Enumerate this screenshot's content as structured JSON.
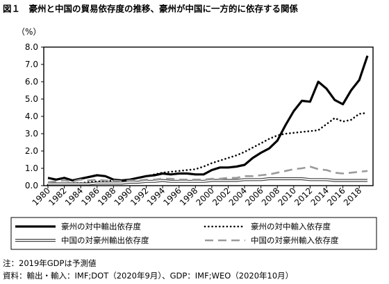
{
  "figure": {
    "title": "図１　豪州と中国の貿易依存度の推移、豪州が中国に一方的に依存する関係",
    "note": "注：2019年GDPは予測値",
    "source": "資料：輸出・輸入：IMF;DOT（2020年9月）、GDP：IMF;WEO（2020年10月）"
  },
  "chart_data": {
    "type": "line",
    "ylabel": "（%）",
    "ylim": [
      0,
      8
    ],
    "yticks": [
      0.0,
      1.0,
      2.0,
      3.0,
      4.0,
      5.0,
      6.0,
      7.0,
      8.0
    ],
    "ytick_labels": [
      "0.0",
      "1.0",
      "2.0",
      "3.0",
      "4.0",
      "5.0",
      "6.0",
      "7.0",
      "8.0"
    ],
    "xlim": [
      1980,
      2019
    ],
    "x_tick_labels": [
      "1980",
      "1982",
      "1984",
      "1986",
      "1988",
      "1990",
      "1992",
      "1994",
      "1996",
      "1998",
      "2000",
      "2002",
      "2004",
      "2006",
      "2008",
      "2010",
      "2012",
      "2014",
      "2016",
      "2018"
    ],
    "grid": false,
    "legend_position": "bottom",
    "x": [
      1980,
      1981,
      1982,
      1983,
      1984,
      1985,
      1986,
      1987,
      1988,
      1989,
      1990,
      1991,
      1992,
      1993,
      1994,
      1995,
      1996,
      1997,
      1998,
      1999,
      2000,
      2001,
      2002,
      2003,
      2004,
      2005,
      2006,
      2007,
      2008,
      2009,
      2010,
      2011,
      2012,
      2013,
      2014,
      2015,
      2016,
      2017,
      2018,
      2019
    ],
    "series": [
      {
        "name": "豪州の対中輸出依存度",
        "style": "solid-thick",
        "color": "#000000",
        "values": [
          0.45,
          0.35,
          0.45,
          0.3,
          0.4,
          0.5,
          0.6,
          0.55,
          0.35,
          0.3,
          0.35,
          0.45,
          0.55,
          0.6,
          0.7,
          0.65,
          0.7,
          0.7,
          0.65,
          0.65,
          0.9,
          1.05,
          1.05,
          1.1,
          1.2,
          1.6,
          1.9,
          2.15,
          2.6,
          3.5,
          4.3,
          4.9,
          4.85,
          6.0,
          5.6,
          4.95,
          4.7,
          5.5,
          6.1,
          7.5
        ]
      },
      {
        "name": "豪州の対中輸入依存度",
        "style": "dotted",
        "color": "#000000",
        "values": [
          0.05,
          0.1,
          0.1,
          0.15,
          0.15,
          0.2,
          0.25,
          0.25,
          0.3,
          0.3,
          0.35,
          0.45,
          0.55,
          0.65,
          0.75,
          0.8,
          0.85,
          0.9,
          0.95,
          1.1,
          1.3,
          1.45,
          1.6,
          1.75,
          1.95,
          2.2,
          2.45,
          2.7,
          2.9,
          3.0,
          3.05,
          3.1,
          3.15,
          3.2,
          3.55,
          3.9,
          3.7,
          3.8,
          4.15,
          4.2
        ]
      },
      {
        "name": "中国の対豪州輸出依存度",
        "style": "double-line",
        "color": "#555555",
        "values": [
          0.1,
          0.1,
          0.1,
          0.1,
          0.1,
          0.1,
          0.15,
          0.15,
          0.15,
          0.15,
          0.2,
          0.2,
          0.25,
          0.25,
          0.3,
          0.25,
          0.25,
          0.25,
          0.25,
          0.25,
          0.3,
          0.3,
          0.3,
          0.3,
          0.35,
          0.35,
          0.35,
          0.4,
          0.4,
          0.4,
          0.4,
          0.4,
          0.35,
          0.35,
          0.35,
          0.3,
          0.3,
          0.3,
          0.3,
          0.3
        ]
      },
      {
        "name": "中国の対豪州輸入依存度",
        "style": "dashed-gray",
        "color": "#9a9a9a",
        "values": [
          0.2,
          0.25,
          0.3,
          0.25,
          0.35,
          0.3,
          0.35,
          0.3,
          0.3,
          0.25,
          0.3,
          0.3,
          0.35,
          0.35,
          0.4,
          0.4,
          0.35,
          0.35,
          0.35,
          0.35,
          0.4,
          0.4,
          0.45,
          0.45,
          0.55,
          0.55,
          0.6,
          0.65,
          0.75,
          0.85,
          0.95,
          1.0,
          1.1,
          0.95,
          0.9,
          0.75,
          0.7,
          0.75,
          0.8,
          0.85
        ]
      }
    ]
  }
}
